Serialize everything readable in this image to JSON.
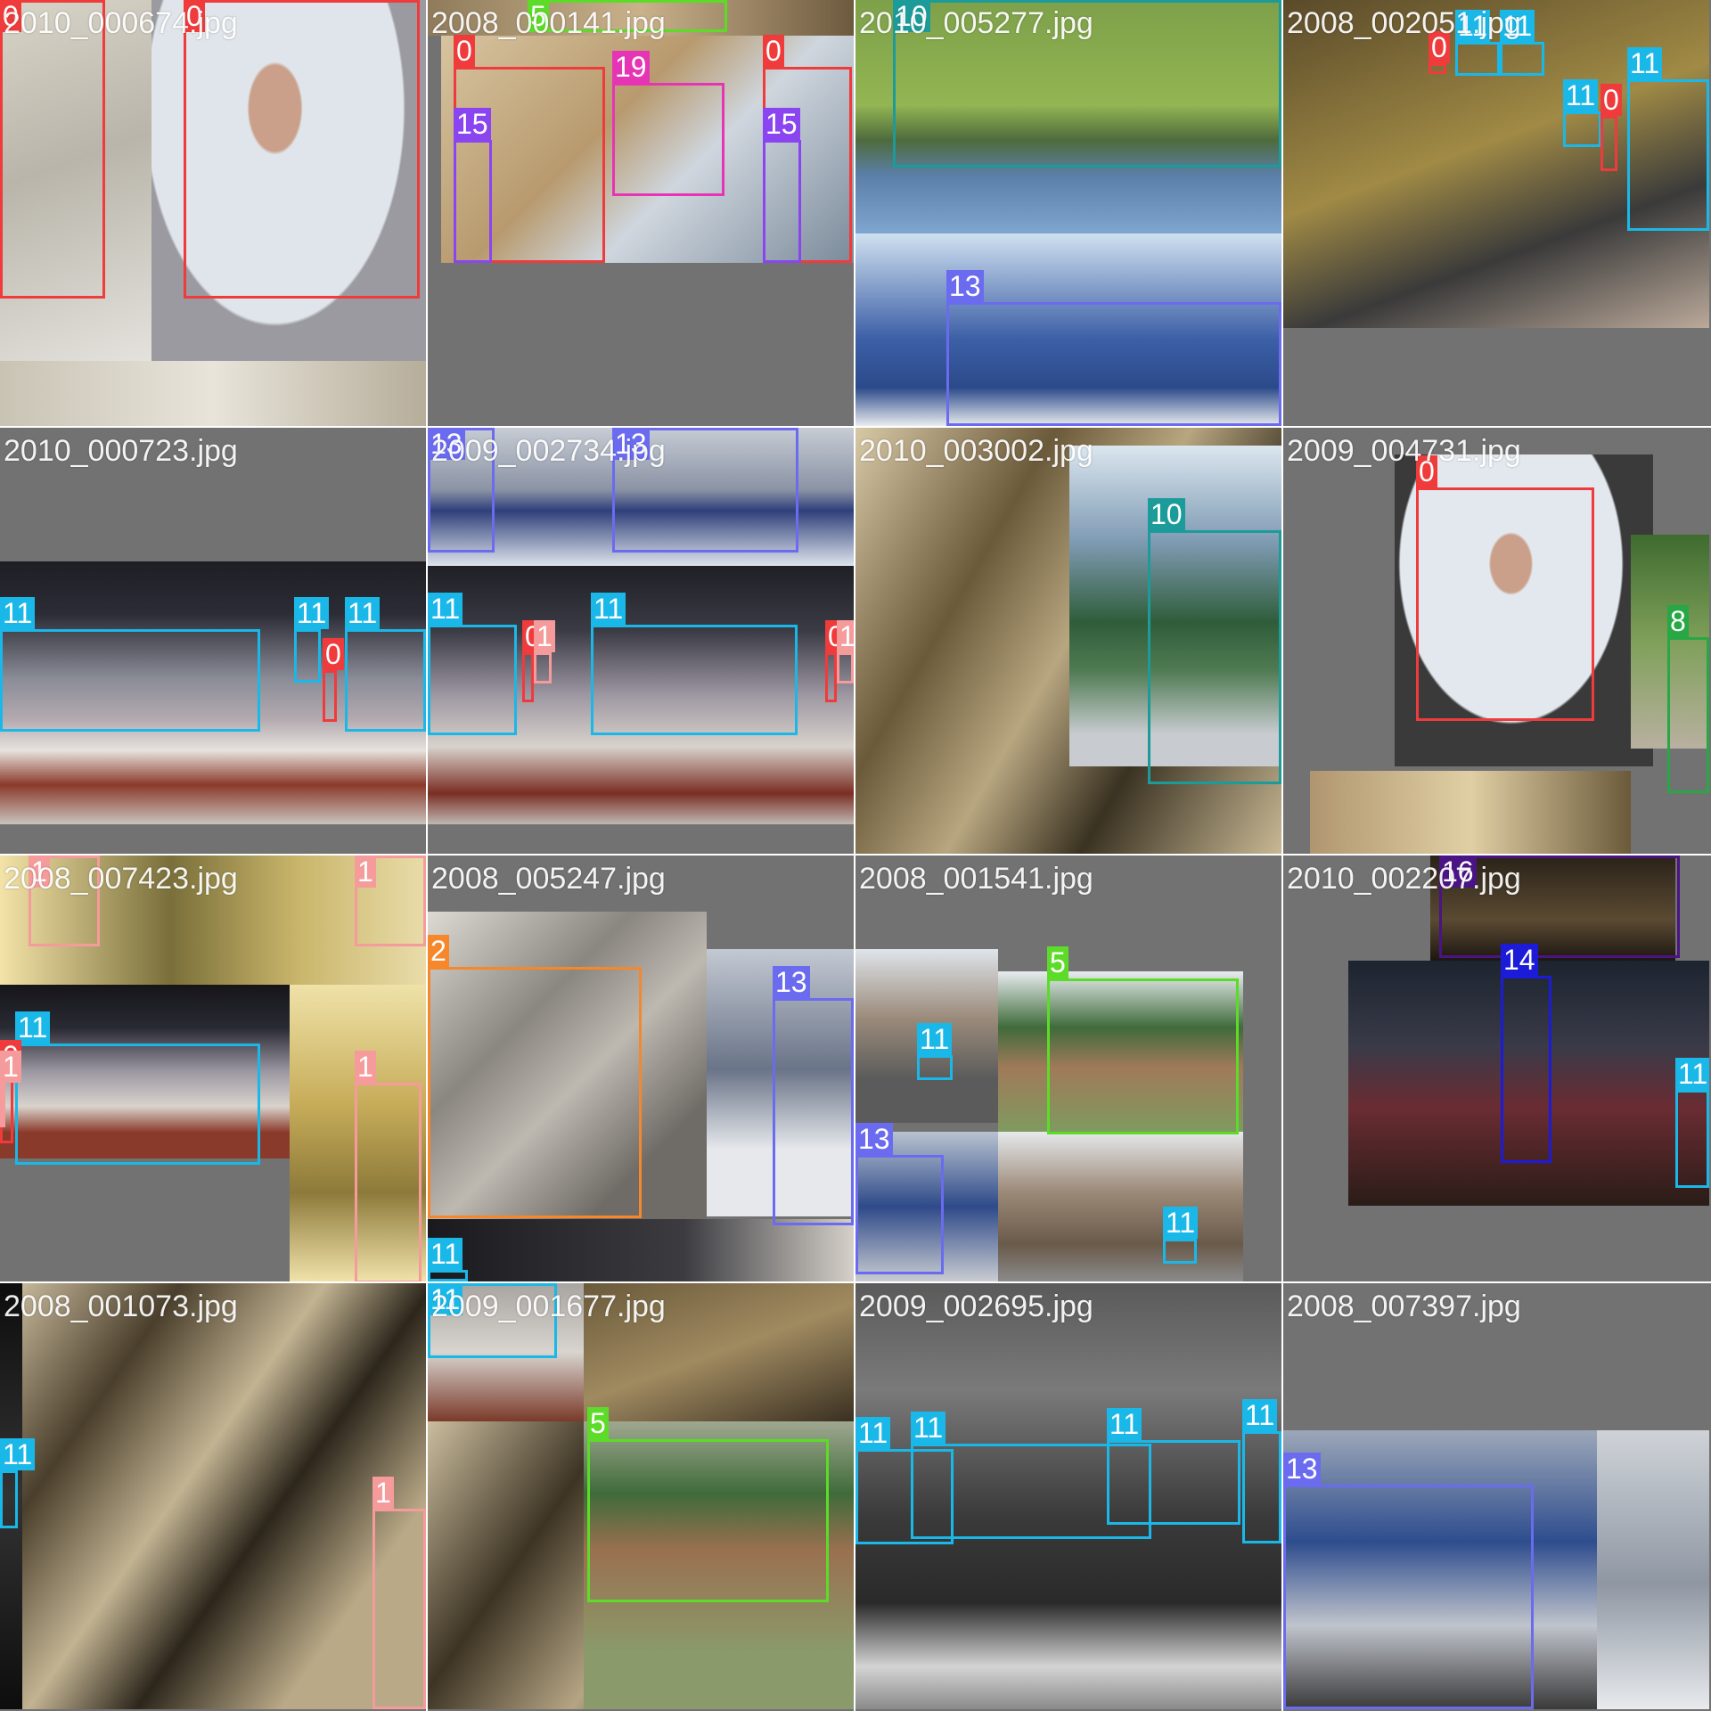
{
  "class_colors": {
    "0": "#ef3b3b",
    "1": "#f59b9b",
    "2": "#f7872b",
    "5": "#5cdc28",
    "8": "#27a844",
    "10": "#1c9b9b",
    "11": "#1ab8e8",
    "13": "#6b6bf0",
    "14": "#1b1bd8",
    "15": "#8b45f0",
    "16": "#4a1485",
    "19": "#e635b4"
  },
  "tiles": [
    {
      "filename": "2010_000674.jpg",
      "labels": [
        "0",
        "0"
      ]
    },
    {
      "filename": "2008_000141.jpg",
      "labels": [
        "5",
        "0",
        "19",
        "0",
        "15",
        "15"
      ]
    },
    {
      "filename": "2010_005277.jpg",
      "labels": [
        "10",
        "13"
      ]
    },
    {
      "filename": "2008_002051.jpg",
      "labels": [
        "11",
        "11",
        "0",
        "11",
        "11",
        "0"
      ]
    },
    {
      "filename": "2010_000723.jpg",
      "labels": [
        "11",
        "11",
        "11",
        "0"
      ]
    },
    {
      "filename": "2009_002734.jpg",
      "labels": [
        "13",
        "13",
        "11",
        "11",
        "0",
        "1",
        "0",
        "1"
      ]
    },
    {
      "filename": "2010_003002.jpg",
      "labels": [
        "10"
      ]
    },
    {
      "filename": "2009_004731.jpg",
      "labels": [
        "0",
        "8"
      ]
    },
    {
      "filename": "2008_007423.jpg",
      "labels": [
        "1",
        "1",
        "11",
        "0",
        "1",
        "1"
      ]
    },
    {
      "filename": "2008_005247.jpg",
      "labels": [
        "2",
        "13",
        "11"
      ]
    },
    {
      "filename": "2008_001541.jpg",
      "labels": [
        "5",
        "11",
        "13",
        "11"
      ]
    },
    {
      "filename": "2010_002207.jpg",
      "labels": [
        "16",
        "14",
        "11"
      ]
    },
    {
      "filename": "2008_001073.jpg",
      "labels": [
        "11",
        "1"
      ]
    },
    {
      "filename": "2009_001677.jpg",
      "labels": [
        "11",
        "5"
      ]
    },
    {
      "filename": "2009_002695.jpg",
      "labels": [
        "11",
        "11",
        "11",
        "11"
      ]
    },
    {
      "filename": "2008_007397.jpg",
      "labels": [
        "13"
      ]
    }
  ]
}
